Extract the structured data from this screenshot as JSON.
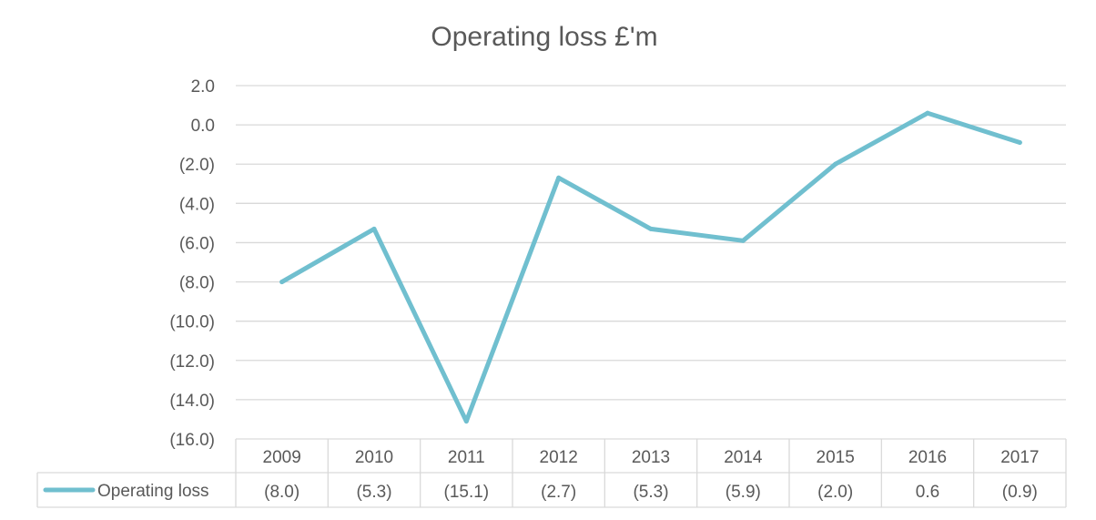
{
  "chart_data": {
    "type": "line",
    "title": "Operating loss £'m",
    "categories": [
      "2009",
      "2010",
      "2011",
      "2012",
      "2013",
      "2014",
      "2015",
      "2016",
      "2017"
    ],
    "series": [
      {
        "name": "Operating loss",
        "values": [
          -8.0,
          -5.3,
          -15.1,
          -2.7,
          -5.3,
          -5.9,
          -2.0,
          0.6,
          -0.9
        ]
      }
    ],
    "table_values": [
      "(8.0)",
      "(5.3)",
      "(15.1)",
      "(2.7)",
      "(5.3)",
      "(5.9)",
      "(2.0)",
      "0.6",
      "(0.9)"
    ],
    "y_ticks": [
      {
        "value": 2,
        "label": "2.0"
      },
      {
        "value": 0,
        "label": "0.0"
      },
      {
        "value": -2,
        "label": "(2.0)"
      },
      {
        "value": -4,
        "label": "(4.0)"
      },
      {
        "value": -6,
        "label": "(6.0)"
      },
      {
        "value": -8,
        "label": "(8.0)"
      },
      {
        "value": -10,
        "label": "(10.0)"
      },
      {
        "value": -12,
        "label": "(12.0)"
      },
      {
        "value": -14,
        "label": "(14.0)"
      },
      {
        "value": -16,
        "label": "(16.0)"
      }
    ],
    "ylim": [
      -16,
      2
    ],
    "grid": true,
    "legend": "data-table",
    "colors": {
      "series": "#70bfcf",
      "gridline": "#d9d9d9",
      "text": "#595959"
    }
  }
}
